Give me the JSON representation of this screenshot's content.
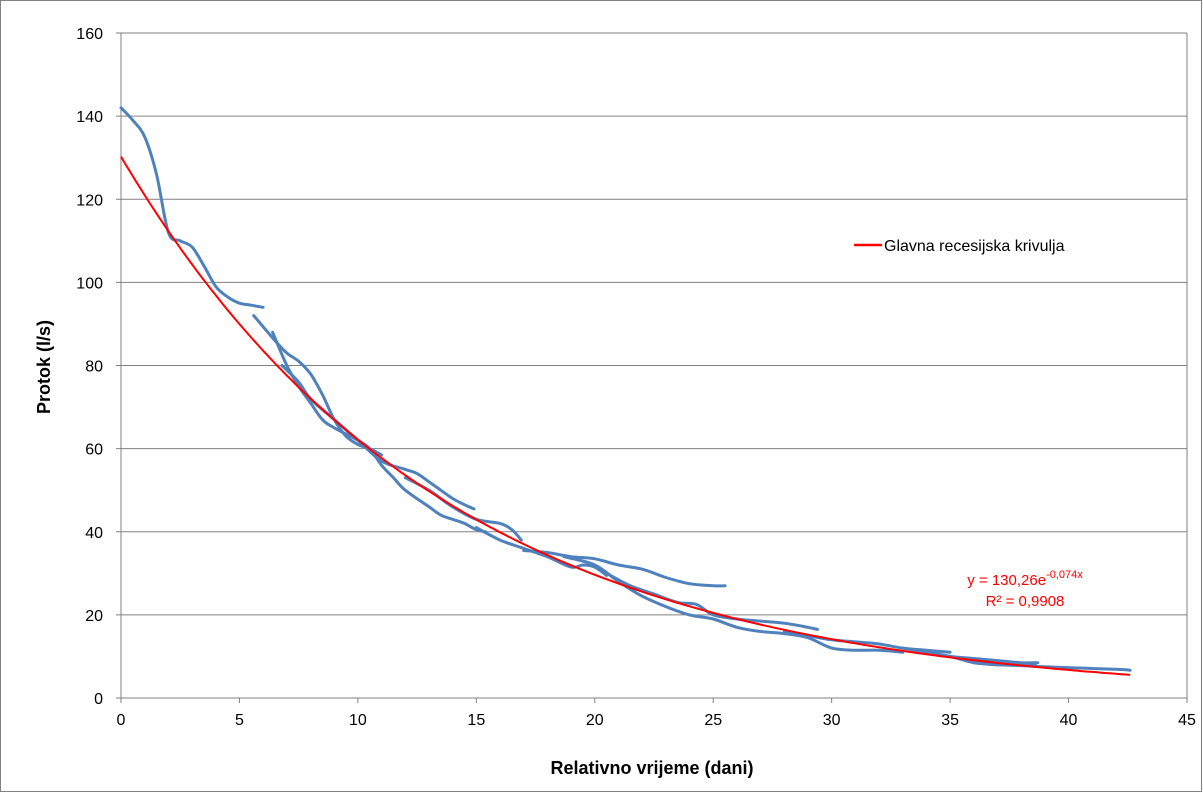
{
  "chart_data": {
    "type": "line",
    "xlabel": "Relativno vrijeme (dani)",
    "ylabel": "Protok (l/s)",
    "xlim": [
      0,
      45
    ],
    "ylim": [
      0,
      160
    ],
    "x_ticks": [
      "0",
      "5",
      "10",
      "15",
      "20",
      "25",
      "30",
      "35",
      "40",
      "45"
    ],
    "y_ticks": [
      "0",
      "20",
      "40",
      "60",
      "80",
      "100",
      "120",
      "140",
      "160"
    ],
    "grid": "horizontal",
    "legend_position": "right",
    "legend": [
      "Glavna recesijska krivulja"
    ],
    "colors": {
      "observed": "#4F81BD",
      "fit": "#FF0000",
      "grid": "#808080",
      "border": "#808080"
    },
    "fit": {
      "name": "Glavna recesijska krivulja",
      "a": 130.26,
      "b": -0.074,
      "x_range": [
        0,
        42.6
      ],
      "equation_prefix": "y = 130,26e",
      "equation_exponent": "-0,074x",
      "r2_label": "R² = 0,9908"
    },
    "series": [
      {
        "points": [
          [
            0,
            142
          ],
          [
            0.5,
            139
          ],
          [
            1,
            135
          ],
          [
            1.5,
            126
          ],
          [
            2,
            112
          ],
          [
            2.5,
            110
          ],
          [
            3,
            108.5
          ],
          [
            3.5,
            104
          ],
          [
            4,
            99
          ],
          [
            4.5,
            96.5
          ],
          [
            5,
            95
          ],
          [
            5.5,
            94.5
          ],
          [
            6,
            94
          ]
        ]
      },
      {
        "points": [
          [
            5.6,
            92
          ],
          [
            6.5,
            86
          ],
          [
            7,
            83
          ],
          [
            7.5,
            81
          ],
          [
            8,
            78
          ],
          [
            8.5,
            73
          ],
          [
            9,
            67
          ],
          [
            9.5,
            63
          ],
          [
            10,
            61
          ],
          [
            10.5,
            60
          ],
          [
            11,
            58.5
          ]
        ]
      },
      {
        "points": [
          [
            6.4,
            88
          ],
          [
            7,
            80
          ],
          [
            7.5,
            75
          ],
          [
            8,
            71
          ],
          [
            8.5,
            67
          ],
          [
            9,
            65
          ],
          [
            10,
            62
          ],
          [
            10.5,
            60
          ],
          [
            11,
            56
          ],
          [
            11.5,
            53
          ],
          [
            12,
            50
          ],
          [
            13,
            46
          ],
          [
            13.5,
            44
          ],
          [
            14,
            43
          ],
          [
            14.5,
            42
          ],
          [
            15,
            40.5
          ],
          [
            15.4,
            40
          ]
        ]
      },
      {
        "points": [
          [
            6.8,
            80
          ],
          [
            7.5,
            76
          ],
          [
            8,
            72
          ],
          [
            9,
            67
          ],
          [
            10,
            62
          ],
          [
            11,
            57
          ],
          [
            12,
            55
          ],
          [
            12.5,
            54
          ],
          [
            13,
            52
          ],
          [
            13.5,
            50
          ],
          [
            14,
            48
          ],
          [
            14.5,
            46.5
          ],
          [
            14.9,
            45.5
          ]
        ]
      },
      {
        "points": [
          [
            12,
            53
          ],
          [
            13,
            50
          ],
          [
            14,
            46
          ],
          [
            15,
            43
          ],
          [
            16,
            42
          ],
          [
            16.5,
            40.5
          ],
          [
            16.9,
            38
          ]
        ]
      },
      {
        "points": [
          [
            15,
            41
          ],
          [
            16,
            38
          ],
          [
            17,
            36
          ],
          [
            18,
            34
          ],
          [
            19,
            31.5
          ],
          [
            19.5,
            32
          ],
          [
            20,
            31.5
          ],
          [
            20.5,
            29.5
          ]
        ]
      },
      {
        "points": [
          [
            17,
            35.5
          ],
          [
            18,
            35
          ],
          [
            19,
            34
          ],
          [
            20,
            33.5
          ],
          [
            21,
            32
          ],
          [
            22,
            31
          ],
          [
            23,
            29
          ],
          [
            24,
            27.5
          ],
          [
            25,
            27
          ],
          [
            25.5,
            27
          ]
        ]
      },
      {
        "points": [
          [
            18.7,
            34
          ],
          [
            20,
            32
          ],
          [
            21,
            28
          ],
          [
            22,
            24.5
          ],
          [
            23,
            22
          ],
          [
            24,
            20
          ],
          [
            25,
            19
          ],
          [
            26,
            17
          ],
          [
            27,
            16
          ],
          [
            28,
            15.5
          ],
          [
            29,
            14.5
          ],
          [
            30,
            12
          ],
          [
            31,
            11.5
          ],
          [
            32,
            11.5
          ],
          [
            33,
            11
          ]
        ]
      },
      {
        "points": [
          [
            20.5,
            30
          ],
          [
            21.5,
            27
          ],
          [
            22.5,
            25
          ],
          [
            23.5,
            23
          ],
          [
            24.3,
            22.5
          ],
          [
            25,
            20
          ],
          [
            26,
            19
          ],
          [
            27,
            18.5
          ],
          [
            28,
            18
          ],
          [
            29,
            17
          ],
          [
            29.4,
            16.5
          ]
        ]
      },
      {
        "points": [
          [
            28,
            16
          ],
          [
            29,
            15
          ],
          [
            30,
            14
          ],
          [
            31,
            13.5
          ],
          [
            32,
            13
          ],
          [
            33,
            12
          ],
          [
            34,
            11.5
          ],
          [
            35,
            11
          ]
        ]
      },
      {
        "points": [
          [
            33,
            12
          ],
          [
            34,
            11
          ],
          [
            35,
            10
          ],
          [
            36,
            8.5
          ],
          [
            37,
            8
          ],
          [
            38,
            8
          ],
          [
            38.6,
            8
          ]
        ]
      },
      {
        "points": [
          [
            34,
            11
          ],
          [
            35,
            10
          ],
          [
            36,
            9.5
          ],
          [
            37,
            9
          ],
          [
            38,
            8.5
          ],
          [
            38.7,
            8.5
          ]
        ]
      },
      {
        "points": [
          [
            36,
            8.5
          ],
          [
            37,
            8
          ],
          [
            38,
            7.8
          ],
          [
            39,
            7.5
          ],
          [
            40,
            7.3
          ],
          [
            41,
            7.1
          ],
          [
            42,
            6.9
          ],
          [
            42.6,
            6.7
          ]
        ]
      }
    ]
  }
}
